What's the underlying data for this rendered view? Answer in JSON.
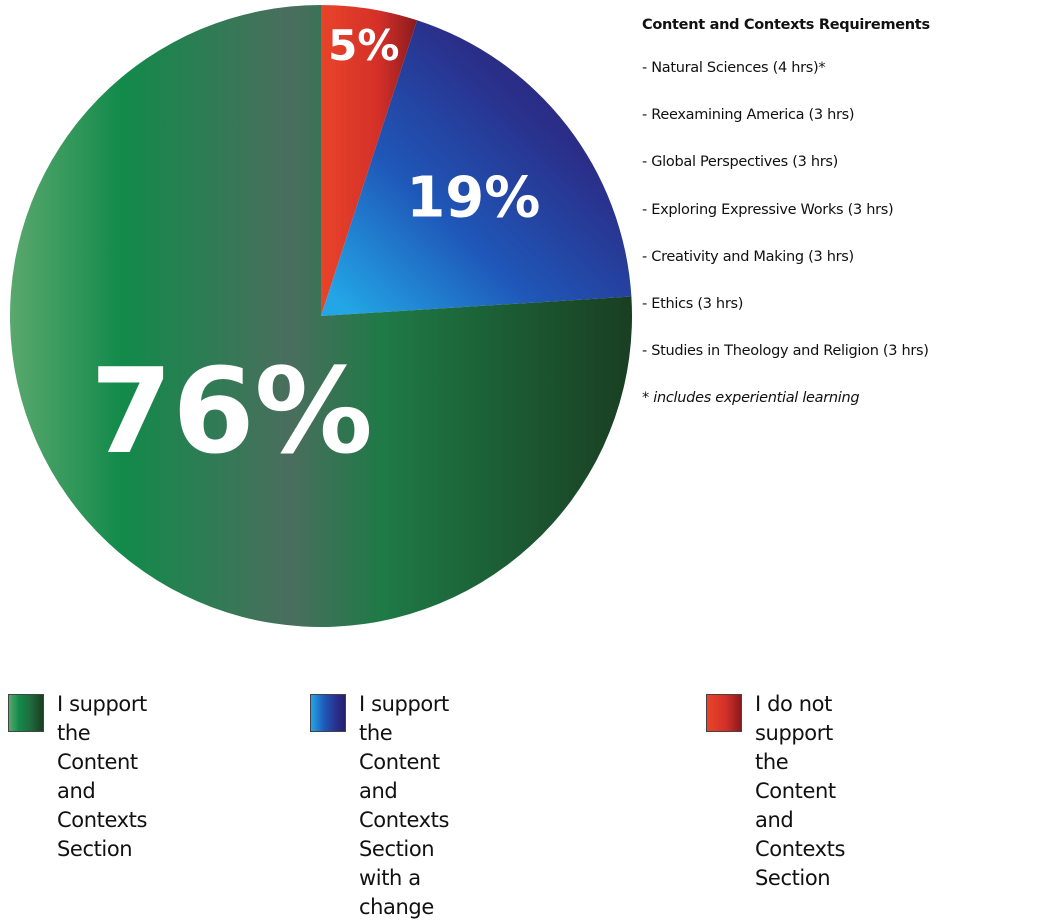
{
  "chart_data": {
    "type": "pie",
    "title": "",
    "slices": [
      {
        "label": "I support the Content and Contexts Section",
        "value": 76,
        "display": "76%",
        "color": "#1a7a4c"
      },
      {
        "label": "I support the Content and Contexts Section with a change",
        "value": 19,
        "display": "19%",
        "color": "#2a2f8a"
      },
      {
        "label": "I do not support the Content and Contexts Section",
        "value": 5,
        "display": "5%",
        "color": "#d83a2a"
      }
    ],
    "legend_position": "bottom"
  },
  "requirements": {
    "title": "Content and Contexts Requirements",
    "items": [
      "- Natural Sciences (4 hrs)*",
      "- Reexamining America (3 hrs)",
      "- Global Perspectives (3 hrs)",
      "- Exploring Expressive Works (3 hrs)",
      "- Creativity and Making (3 hrs)",
      "- Ethics (3 hrs)",
      "- Studies in Theology and Religion (3 hrs)"
    ],
    "note": "* includes experiential learning"
  },
  "legend": [
    {
      "line1": "I support the Content",
      "line2": "and Contexts Section"
    },
    {
      "line1": "I support the Content and",
      "line2": "Contexts Section with a change"
    },
    {
      "line1": "I do not support the Content",
      "line2": "and Contexts Section"
    }
  ]
}
